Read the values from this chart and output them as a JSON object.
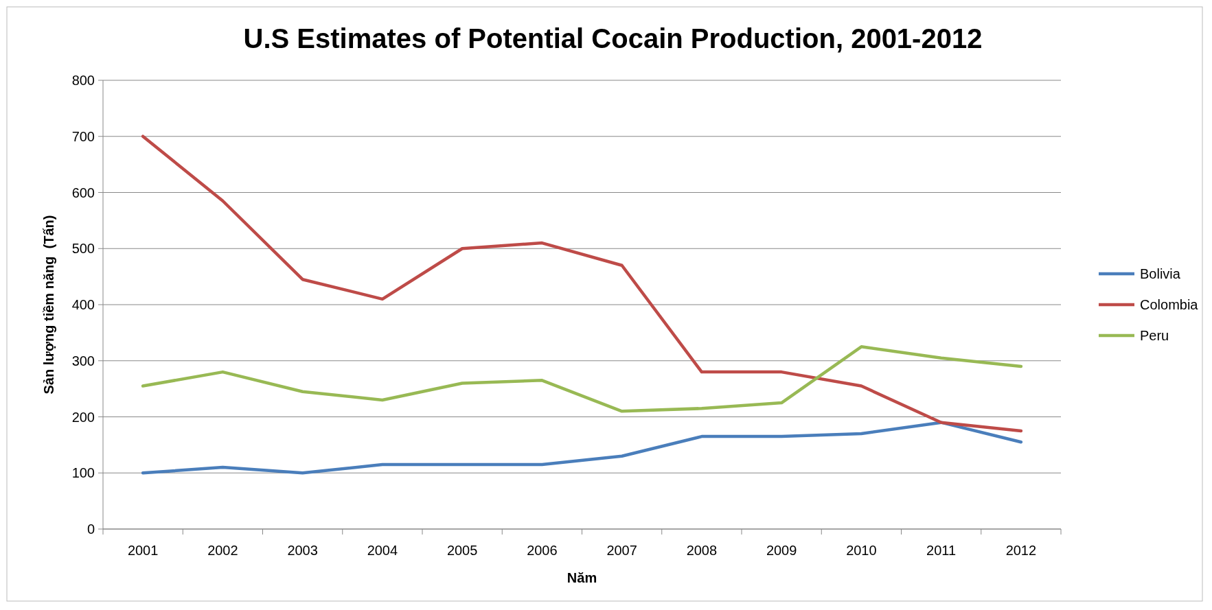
{
  "chart_data": {
    "type": "line",
    "title": "U.S Estimates of Potential Cocain Production, 2001-2012",
    "xlabel": "Năm",
    "ylabel": "Sản lượng tiềm năng  (Tấn)",
    "categories": [
      "2001",
      "2002",
      "2003",
      "2004",
      "2005",
      "2006",
      "2007",
      "2008",
      "2009",
      "2010",
      "2011",
      "2012"
    ],
    "series": [
      {
        "name": "Bolivia",
        "color": "#4a7ebb",
        "values": [
          100,
          110,
          100,
          115,
          115,
          115,
          130,
          165,
          165,
          170,
          190,
          155
        ]
      },
      {
        "name": "Colombia",
        "color": "#be4b48",
        "values": [
          700,
          585,
          445,
          410,
          500,
          510,
          470,
          280,
          280,
          255,
          190,
          175
        ]
      },
      {
        "name": "Peru",
        "color": "#98b954",
        "values": [
          255,
          280,
          245,
          230,
          260,
          265,
          210,
          215,
          225,
          325,
          305,
          290
        ]
      }
    ],
    "ylim": [
      0,
      800
    ],
    "yticks": [
      0,
      100,
      200,
      300,
      400,
      500,
      600,
      700,
      800
    ],
    "grid": "y",
    "legend": "right",
    "marker": "none",
    "line_style": "solid"
  }
}
